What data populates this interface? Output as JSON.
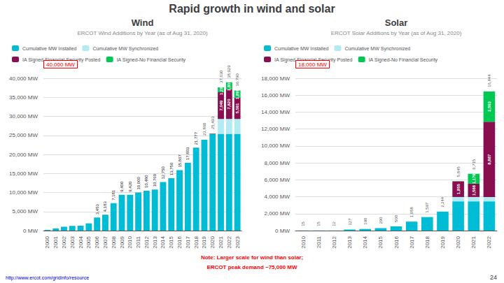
{
  "title": "Rapid growth in wind and solar",
  "annotations": [
    {
      "text": "Note: Larger scale for wind than solar;",
      "color": "#FF0000"
    },
    {
      "text": "ERCOT peak demand ~75,000 MW",
      "color": "#FF0000"
    },
    {
      "text": "http://www.ercot.com/gridinfo/resource",
      "color": "#0000CC"
    },
    {
      "text": "24"
    }
  ],
  "chart_data": [
    {
      "type": "bar",
      "stacked": true,
      "title": "Wind",
      "subtitle": "ERCOT Wind Additions by Year (as of Aug 31, 2020)",
      "annotations": [
        {
          "text": "40,000 MW",
          "color": "#FF0000"
        }
      ],
      "categories": [
        "2000",
        "2001",
        "2002",
        "2003",
        "2004",
        "2005",
        "2006",
        "2007",
        "2008",
        "2009",
        "2010",
        "2011",
        "2012",
        "2013",
        "2014",
        "2015",
        "2016",
        "2017",
        "2018",
        "2019",
        "2020",
        "2021",
        "2022",
        "2023"
      ],
      "series": [
        {
          "name": "Cumulative MW Installed",
          "color": "#00BCD4",
          "values": [
            180,
            551,
            1001,
            1241,
            1293,
            1903,
            3453,
            4183,
            7181,
            9400,
            9420,
            10000,
            10480,
            10760,
            12750,
            13750,
            15867,
            17803,
            21777,
            23860,
            25400,
            25400,
            25400,
            25400
          ],
          "value_labels": [
            null,
            null,
            null,
            null,
            null,
            null,
            "3,453",
            "4,183",
            "7,181",
            "9,400",
            "9,420",
            "10,000",
            "10,480",
            "10,760",
            "12,750",
            "13,750",
            "15,867",
            "17,803",
            "21,777",
            null,
            null,
            null,
            null,
            null
          ]
        },
        {
          "name": "Cumulative MW Synchronized",
          "color": "#B2EBF2",
          "values": [
            0,
            0,
            0,
            0,
            0,
            0,
            0,
            0,
            0,
            0,
            0,
            0,
            0,
            0,
            0,
            0,
            0,
            0,
            0,
            0,
            0,
            3900,
            3900,
            3900
          ]
        },
        {
          "name": "IA Signed-Financial Security Posted",
          "color": "#880E4F",
          "values": [
            0,
            0,
            0,
            0,
            0,
            0,
            0,
            0,
            0,
            0,
            0,
            0,
            0,
            0,
            0,
            0,
            0,
            0,
            0,
            0,
            93,
            7049,
            7820,
            5591
          ],
          "value_labels": [
            null,
            null,
            null,
            null,
            null,
            null,
            null,
            null,
            null,
            null,
            null,
            null,
            null,
            null,
            null,
            null,
            null,
            null,
            null,
            null,
            null,
            "7,049",
            "7,820",
            "5,591"
          ]
        },
        {
          "name": "IA Signed-No Financial Security",
          "color": "#00C853",
          "values": [
            0,
            0,
            0,
            0,
            0,
            0,
            0,
            0,
            0,
            0,
            0,
            0,
            0,
            0,
            0,
            0,
            0,
            0,
            0,
            0,
            0,
            1281,
            1809,
            1899
          ],
          "value_labels": [
            null,
            null,
            null,
            null,
            null,
            null,
            null,
            null,
            null,
            null,
            null,
            null,
            null,
            null,
            null,
            null,
            null,
            null,
            null,
            null,
            null,
            "1,281",
            "1,809",
            "1,899"
          ]
        }
      ],
      "totals": [
        null,
        null,
        null,
        null,
        null,
        null,
        null,
        null,
        null,
        null,
        null,
        null,
        null,
        null,
        null,
        null,
        null,
        null,
        null,
        23860,
        25493,
        37630,
        38929,
        36790
      ],
      "total_labels": [
        null,
        null,
        null,
        null,
        null,
        null,
        null,
        null,
        null,
        null,
        null,
        null,
        null,
        null,
        null,
        null,
        null,
        null,
        null,
        "23,860",
        "25,493",
        "37,630",
        "38,929",
        "36,790"
      ],
      "ylim": [
        0,
        40000
      ],
      "yticks": [
        {
          "value": 0,
          "label": "0 MW"
        },
        {
          "value": 5000,
          "label": "5,000 MW"
        },
        {
          "value": 10000,
          "label": "10,000 MW"
        },
        {
          "value": 15000,
          "label": "15,000 MW"
        },
        {
          "value": 20000,
          "label": "20,000 MW"
        },
        {
          "value": 25000,
          "label": "25,000 MW"
        },
        {
          "value": 30000,
          "label": "30,000 MW"
        },
        {
          "value": 35000,
          "label": "35,000 MW"
        },
        {
          "value": 40000,
          "label": "40,000 MW"
        }
      ],
      "grid": true,
      "legend": "upper left",
      "data_labels": true
    },
    {
      "type": "bar",
      "stacked": true,
      "title": "Solar",
      "subtitle": "ERCOT Solar Additions by Year (as of Aug 31, 2020)",
      "annotations": [
        {
          "text": "18,000 MW",
          "color": "#FF0000"
        }
      ],
      "categories": [
        "2010",
        "2011",
        "2012",
        "2013",
        "2014",
        "2015",
        "2016",
        "2017",
        "2018",
        "2019",
        "2020",
        "2021",
        "2022"
      ],
      "series": [
        {
          "name": "Cumulative MW Installed",
          "color": "#00BCD4",
          "values": [
            15,
            15,
            12,
            127,
            190,
            290,
            500,
            1058,
            1597,
            2244,
            3453,
            3453,
            3453
          ]
        },
        {
          "name": "Cumulative MW Synchronized",
          "color": "#B2EBF2",
          "values": [
            0,
            0,
            0,
            0,
            0,
            0,
            0,
            0,
            0,
            0,
            517,
            517,
            511
          ]
        },
        {
          "name": "IA Signed-Financial Security Posted",
          "color": "#880E4F",
          "values": [
            0,
            0,
            0,
            0,
            0,
            0,
            0,
            0,
            0,
            0,
            1855,
            1566,
            8887
          ],
          "value_labels": [
            null,
            null,
            null,
            null,
            null,
            null,
            null,
            null,
            null,
            null,
            "1,855",
            "1,566",
            "8,887"
          ]
        },
        {
          "name": "IA Signed-No Financial Security",
          "color": "#00C853",
          "values": [
            0,
            0,
            0,
            0,
            0,
            0,
            0,
            0,
            0,
            0,
            20,
            1179,
            3593
          ],
          "value_labels": [
            null,
            null,
            null,
            null,
            null,
            null,
            null,
            null,
            null,
            null,
            null,
            "1,179",
            "3,593"
          ]
        }
      ],
      "totals": [
        15,
        15,
        12,
        127,
        190,
        290,
        500,
        1058,
        1597,
        2244,
        5845,
        6715,
        16444
      ],
      "total_labels": [
        "15",
        "15",
        "12",
        "127",
        "190",
        "290",
        "500",
        "1,058",
        "1,597",
        "2,244",
        "5,845",
        "6,715",
        "16,444"
      ],
      "ylim": [
        0,
        18000
      ],
      "yticks": [
        {
          "value": 0,
          "label": "0 MW"
        },
        {
          "value": 2000,
          "label": "2,000 MW"
        },
        {
          "value": 4000,
          "label": "4,000 MW"
        },
        {
          "value": 6000,
          "label": "6,000 MW"
        },
        {
          "value": 8000,
          "label": "8,000 MW"
        },
        {
          "value": 10000,
          "label": "10,000 MW"
        },
        {
          "value": 12000,
          "label": "12,000 MW"
        },
        {
          "value": 14000,
          "label": "14,000 MW"
        },
        {
          "value": 16000,
          "label": "16,000 MW"
        },
        {
          "value": 18000,
          "label": "18,000 MW"
        }
      ],
      "grid": true,
      "legend": "upper left",
      "data_labels": true
    }
  ]
}
